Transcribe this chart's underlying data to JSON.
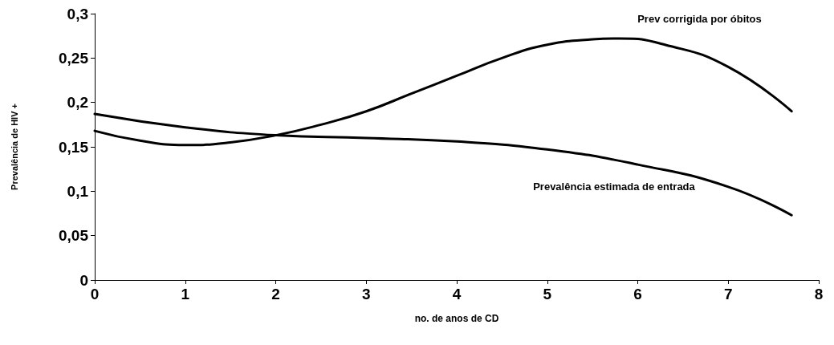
{
  "chart_data": {
    "type": "line",
    "xlabel": "no. de anos de CD",
    "ylabel": "Prevalência de HIV +",
    "xlim": [
      0,
      8
    ],
    "xticks": [
      0,
      1,
      2,
      3,
      4,
      5,
      6,
      7,
      8
    ],
    "ylim": [
      0,
      0.3
    ],
    "yticks": [
      0,
      {
        "value": 0.05,
        "label": "0,05"
      },
      {
        "value": 0.1,
        "label": "0,1"
      },
      {
        "value": 0.15,
        "label": "0,15"
      },
      {
        "value": 0.2,
        "label": "0,2"
      },
      {
        "value": 0.25,
        "label": "0,25"
      },
      {
        "value": 0.3,
        "label": "0,3"
      }
    ],
    "grid": false,
    "marker": "none",
    "line_style": "solid",
    "series": [
      {
        "name": "Prev corrigida por óbitos",
        "color": "#000000",
        "x": [
          0,
          0.5,
          1,
          1.5,
          2,
          2.5,
          3,
          3.5,
          4,
          4.5,
          5,
          5.5,
          5.8,
          6.3,
          7,
          7.7
        ],
        "values": [
          0.168,
          0.157,
          0.152,
          0.155,
          0.163,
          0.175,
          0.19,
          0.21,
          0.23,
          0.25,
          0.265,
          0.271,
          0.272,
          0.265,
          0.24,
          0.19
        ]
      },
      {
        "name": "Prevalência estimada de entrada",
        "color": "#000000",
        "x": [
          0,
          1,
          2,
          3,
          4,
          5,
          6,
          7,
          7.7
        ],
        "values": [
          0.187,
          0.172,
          0.163,
          0.16,
          0.156,
          0.147,
          0.13,
          0.105,
          0.073
        ]
      }
    ]
  }
}
